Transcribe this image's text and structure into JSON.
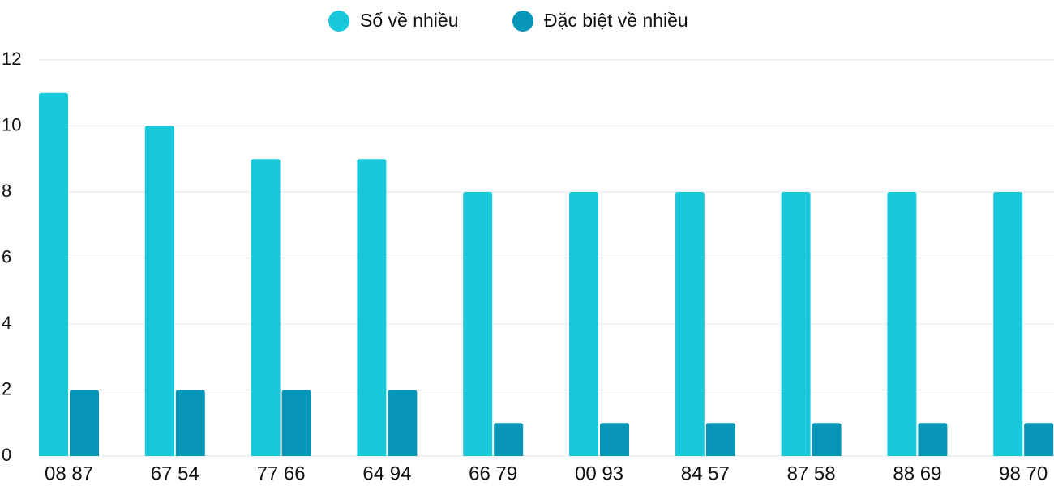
{
  "chart_data": {
    "type": "bar",
    "categories": [
      "08 87",
      "67 54",
      "77 66",
      "64 94",
      "66 79",
      "00 93",
      "84 57",
      "87 58",
      "88 69",
      "98 70"
    ],
    "series": [
      {
        "name": "Số về nhiều",
        "color": "#1ac8db",
        "values": [
          11,
          10,
          9,
          9,
          8,
          8,
          8,
          8,
          8,
          8
        ]
      },
      {
        "name": "Đặc biệt về nhiều",
        "color": "#0795b8",
        "values": [
          2,
          2,
          2,
          2,
          1,
          1,
          1,
          1,
          1,
          1
        ]
      }
    ],
    "ylim": [
      0,
      12
    ],
    "yticks": [
      0,
      2,
      4,
      6,
      8,
      10,
      12
    ],
    "grid": true,
    "legend": "top"
  }
}
